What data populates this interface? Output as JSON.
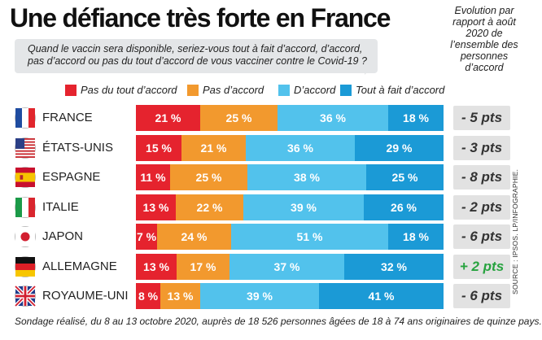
{
  "title": "Une défiance très forte en France",
  "question": "Quand le vaccin sera disponible, seriez-vous tout à fait d’accord, d’accord, pas d’accord ou pas du tout d’accord de vous vacciner contre le Covid-19 ?",
  "evolution_header": "Evolution par rapport à août 2020 de l’ensemble des personnes d’accord",
  "source": "SOURCE : IPSOS. LP/INFOGRAPHIE.",
  "footnote": "Sondage réalisé, du 8 au 13 octobre 2020, auprès de 18 526 personnes âgées de 18 à 74 ans originaires de quinze pays.",
  "chart_data": {
    "type": "bar",
    "orientation": "horizontal",
    "stacked": true,
    "title": "Une défiance très forte en France",
    "categories": [
      "FRANCE",
      "ÉTATS-UNIS",
      "ESPAGNE",
      "ITALIE",
      "JAPON",
      "ALLEMAGNE",
      "ROYAUME-UNI"
    ],
    "series": [
      {
        "name": "Pas du tout d’accord",
        "color": "#e5232e",
        "values": [
          21,
          15,
          11,
          13,
          7,
          13,
          8
        ]
      },
      {
        "name": "Pas d’accord",
        "color": "#f2992e",
        "values": [
          25,
          21,
          25,
          22,
          24,
          17,
          13
        ]
      },
      {
        "name": "D’accord",
        "color": "#52c2ec",
        "values": [
          36,
          36,
          38,
          39,
          51,
          37,
          39
        ]
      },
      {
        "name": "Tout à fait d’accord",
        "color": "#1b9ad6",
        "values": [
          18,
          29,
          25,
          26,
          18,
          32,
          41
        ]
      }
    ],
    "value_labels": [
      [
        "21 %",
        "25 %",
        "36 %",
        "18 %"
      ],
      [
        "15 %",
        "21 %",
        "36 %",
        "29 %"
      ],
      [
        "11 %",
        "25 %",
        "38 %",
        "25 %"
      ],
      [
        "13 %",
        "22 %",
        "39 %",
        "26 %"
      ],
      [
        "7 %",
        "24 %",
        "51 %",
        "18 %"
      ],
      [
        "13 %",
        "17 %",
        "37 %",
        "32 %"
      ],
      [
        "8 %",
        "13 %",
        "39 %",
        "41 %"
      ]
    ],
    "evolution": [
      "- 5 pts",
      "- 3 pts",
      "- 8 pts",
      "- 2 pts",
      "- 6 pts",
      "+ 2 pts",
      "- 6 pts"
    ],
    "evolution_colors": [
      "#333333",
      "#333333",
      "#333333",
      "#333333",
      "#333333",
      "#27a33f",
      "#333333"
    ],
    "xlim": [
      0,
      100
    ],
    "legend_position": "top"
  }
}
